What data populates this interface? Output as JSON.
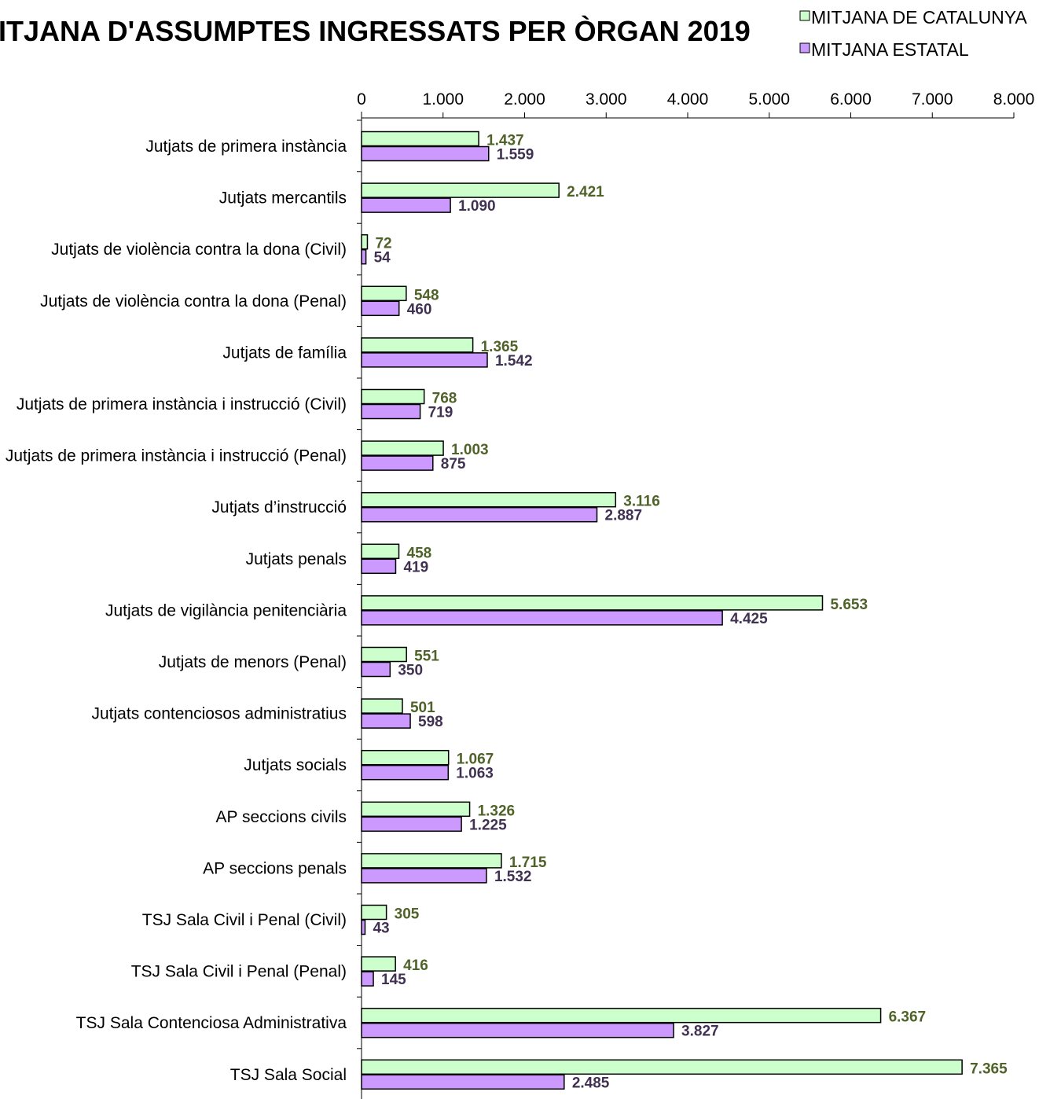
{
  "chart_data": {
    "type": "bar",
    "orientation": "horizontal",
    "title": "ITJANA D'ASSUMPTES INGRESSATS PER ÒRGAN 2019",
    "xlim": [
      0,
      8000
    ],
    "ticks": [
      0,
      1000,
      2000,
      3000,
      4000,
      5000,
      6000,
      7000,
      8000
    ],
    "tick_labels": [
      "0",
      "1.000",
      "2.000",
      "3.000",
      "4.000",
      "5.000",
      "6.000",
      "7.000",
      "8.000"
    ],
    "legend_position": "top-right",
    "categories": [
      "Jutjats de primera instància",
      "Jutjats mercantils",
      "Jutjats de violència contra la dona  (Civil)",
      "Jutjats de violència contra la dona  (Penal)",
      "Jutjats de família",
      "Jutjats de primera instància i instrucció (Civil)",
      "Jutjats de primera instància i instrucció   (Penal)",
      "Jutjats d’instrucció",
      "Jutjats penals",
      "Jutjats de vigilància penitenciària",
      "Jutjats de menors (Penal)",
      "Jutjats contenciosos administratius",
      "Jutjats socials",
      "AP seccions civils",
      "AP seccions penals",
      "TSJ Sala Civil i Penal (Civil)",
      "TSJ Sala Civil i Penal (Penal)",
      "TSJ Sala Contenciosa Administrativa",
      "TSJ Sala Social"
    ],
    "series": [
      {
        "name": "MITJANA DE CATALUNYA",
        "color": "#ccffcc",
        "label_color": "#4f6228",
        "values": [
          1437,
          2421,
          72,
          548,
          1365,
          768,
          1003,
          3116,
          458,
          5653,
          551,
          501,
          1067,
          1326,
          1715,
          305,
          416,
          6367,
          7365
        ],
        "labels": [
          "1.437",
          "2.421",
          "72",
          "548",
          "1.365",
          "768",
          "1.003",
          "3.116",
          "458",
          "5.653",
          "551",
          "501",
          "1.067",
          "1.326",
          "1.715",
          "305",
          "416",
          "6.367",
          "7.365"
        ]
      },
      {
        "name": "MITJANA ESTATAL",
        "color": "#cc99ff",
        "label_color": "#403152",
        "values": [
          1559,
          1090,
          54,
          460,
          1542,
          719,
          875,
          2887,
          419,
          4425,
          350,
          598,
          1063,
          1225,
          1532,
          43,
          145,
          3827,
          2485
        ],
        "labels": [
          "1.559",
          "1.090",
          "54",
          "460",
          "1.542",
          "719",
          "875",
          "2.887",
          "419",
          "4.425",
          "350",
          "598",
          "1.063",
          "1.225",
          "1.532",
          "43",
          "145",
          "3.827",
          "2.485"
        ]
      }
    ]
  }
}
